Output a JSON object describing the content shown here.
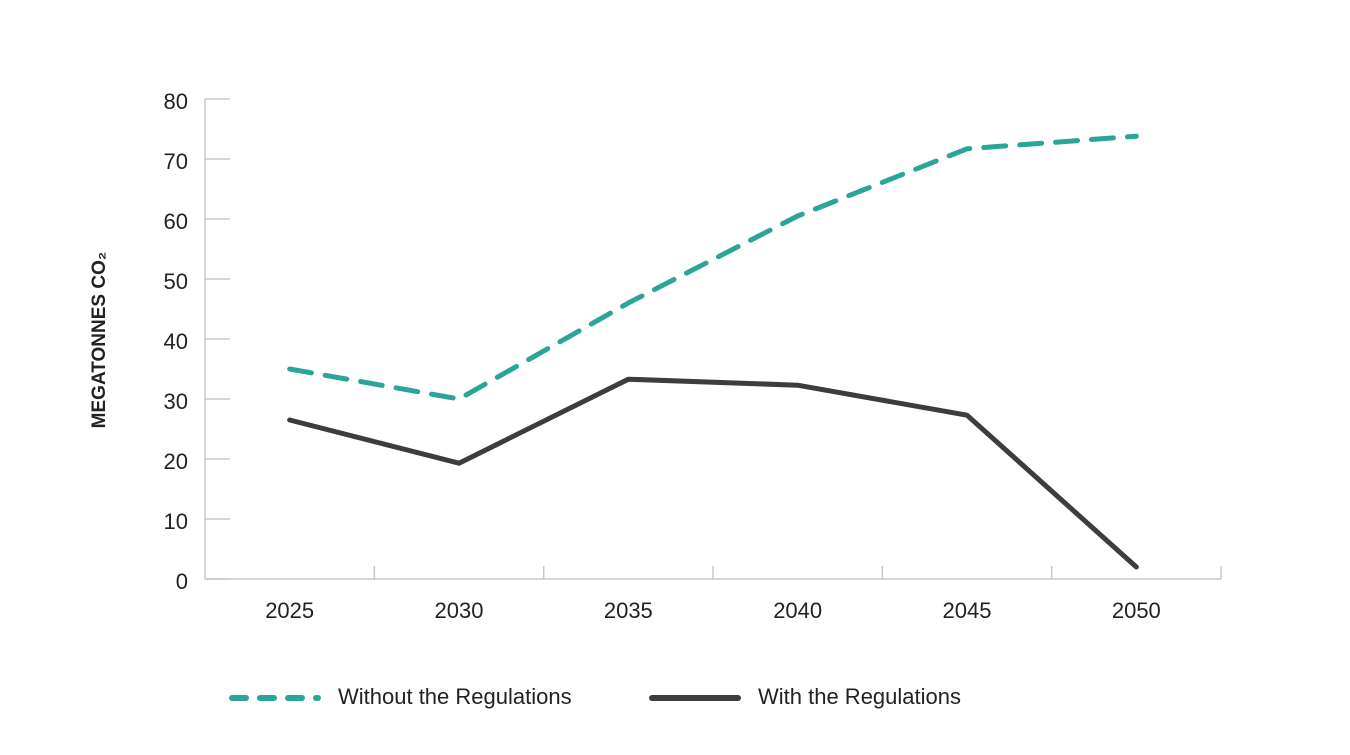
{
  "chart_data": {
    "type": "line",
    "y_label": "MEGATONNES CO₂",
    "categories": [
      "2025",
      "2030",
      "2035",
      "2040",
      "2045",
      "2050"
    ],
    "series": [
      {
        "name": "Without the Regulations",
        "color": "#2aa598",
        "dashed": true,
        "values": [
          35,
          30,
          46,
          60.5,
          71.7,
          73.8
        ]
      },
      {
        "name": "With the Regulations",
        "color": "#3d3d3d",
        "dashed": false,
        "values": [
          26.5,
          19.3,
          33.3,
          32.3,
          27.3,
          2
        ]
      }
    ],
    "ylim": [
      0,
      80
    ],
    "yticks": [
      0,
      10,
      20,
      30,
      40,
      50,
      60,
      70,
      80
    ],
    "grid": false
  }
}
